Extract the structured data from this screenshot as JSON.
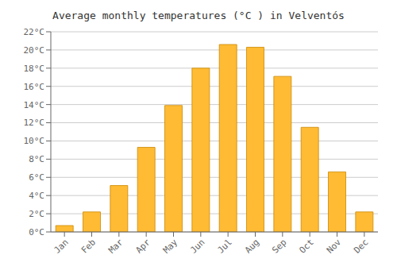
{
  "chart_data": {
    "type": "bar",
    "title": "Average monthly temperatures (°C ) in Velventós",
    "categories": [
      "Jan",
      "Feb",
      "Mar",
      "Apr",
      "May",
      "Jun",
      "Jul",
      "Aug",
      "Sep",
      "Oct",
      "Nov",
      "Dec"
    ],
    "values": [
      0.7,
      2.2,
      5.1,
      9.3,
      13.9,
      18.0,
      20.6,
      20.3,
      17.1,
      11.5,
      6.6,
      2.2
    ],
    "color": "#FFBB33",
    "ylim": [
      0,
      22
    ],
    "yticks": [
      {
        "value": 0,
        "label": "0°C"
      },
      {
        "value": 2,
        "label": "2°C"
      },
      {
        "value": 4,
        "label": "4°C"
      },
      {
        "value": 6,
        "label": "6°C"
      },
      {
        "value": 8,
        "label": "8°C"
      },
      {
        "value": 10,
        "label": "10°C"
      },
      {
        "value": 12,
        "label": "12°C"
      },
      {
        "value": 14,
        "label": "14°C"
      },
      {
        "value": 16,
        "label": "16°C"
      },
      {
        "value": 18,
        "label": "18°C"
      },
      {
        "value": 20,
        "label": "20°C"
      },
      {
        "value": 22,
        "label": "22°C"
      }
    ],
    "grid": true
  }
}
